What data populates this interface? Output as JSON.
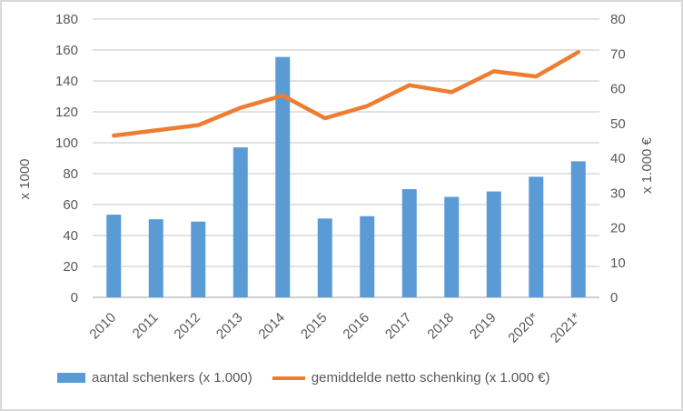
{
  "colors": {
    "bar": "#5B9BD5",
    "line": "#ED7D31",
    "gridline": "#D9D9D9",
    "axis_line": "#D0D0D0",
    "axis_text": "#595959",
    "border": "#D9D9D9",
    "background": "#FFFFFF"
  },
  "chart_data": {
    "type": "bar",
    "subtype": "bar+line dual axis",
    "categories": [
      "2010",
      "2011",
      "2012",
      "2013",
      "2014",
      "2015",
      "2016",
      "2017",
      "2018",
      "2019",
      "2020*",
      "2021*"
    ],
    "series": [
      {
        "name": "aantal schenkers (x 1.000)",
        "type": "bar",
        "axis": "left",
        "color": "#5B9BD5",
        "values": [
          53.5,
          50.5,
          49,
          97,
          155.5,
          51,
          52.5,
          70,
          65,
          68.5,
          78,
          88
        ]
      },
      {
        "name": "gemiddelde netto schenking (x 1.000 €)",
        "type": "line",
        "axis": "right",
        "color": "#ED7D31",
        "values": [
          46.5,
          48,
          49.5,
          54.5,
          58,
          51.5,
          55,
          61,
          59,
          65,
          63.5,
          70.5
        ]
      }
    ],
    "left_axis": {
      "title": "x 1000",
      "min": 0,
      "max": 180,
      "step": 20,
      "ticks": [
        0,
        20,
        40,
        60,
        80,
        100,
        120,
        140,
        160,
        180
      ]
    },
    "right_axis": {
      "title": "x 1.000 €",
      "min": 0,
      "max": 80,
      "step": 10,
      "ticks": [
        0,
        10,
        20,
        30,
        40,
        50,
        60,
        70,
        80
      ]
    },
    "grid": true,
    "legend_position": "bottom",
    "title": ""
  }
}
